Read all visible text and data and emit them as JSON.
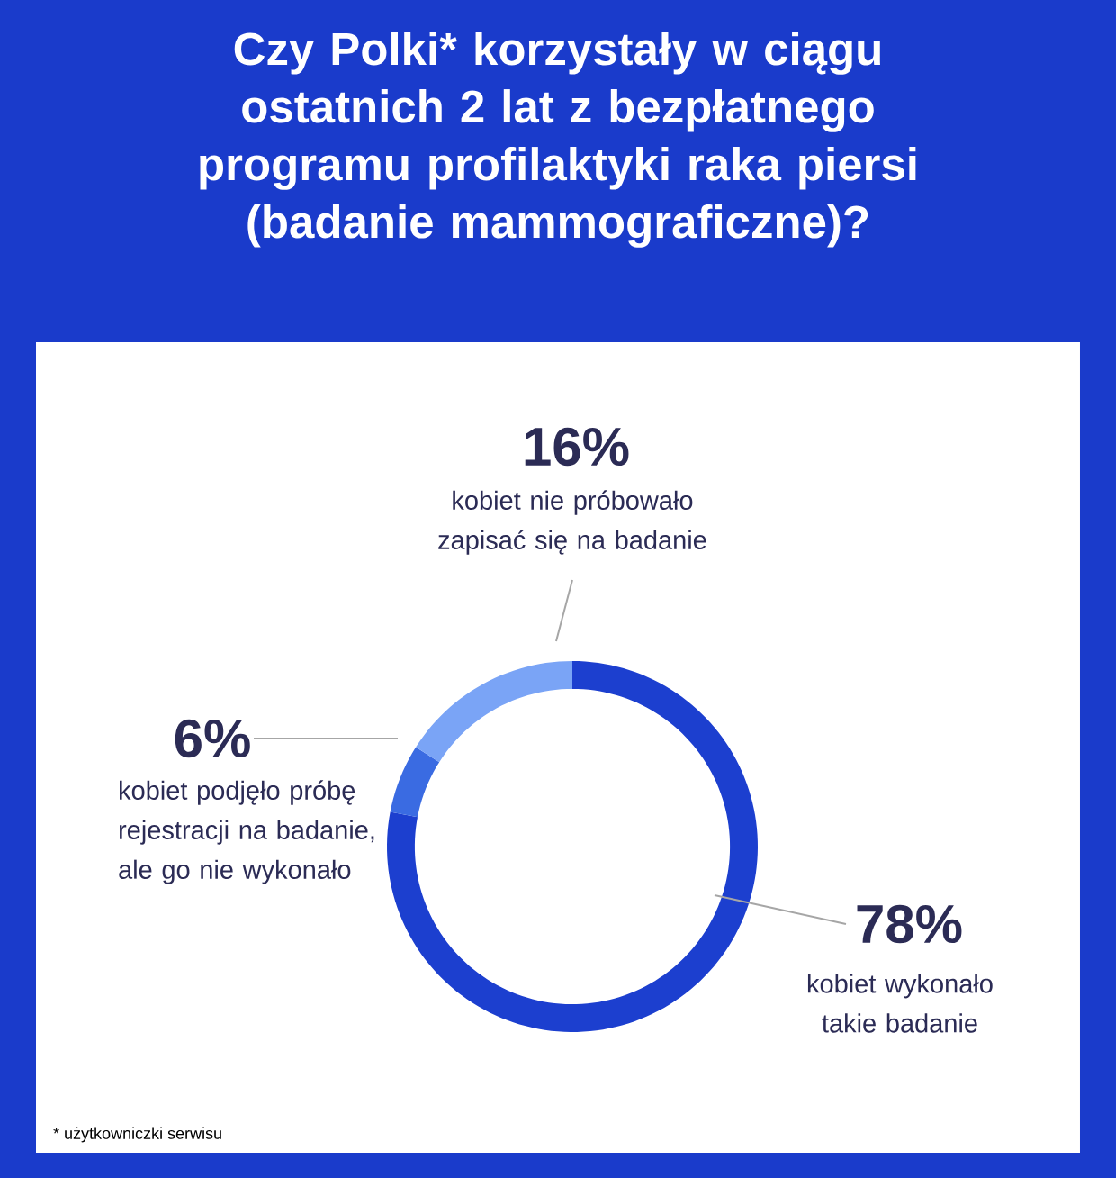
{
  "chart_data": {
    "type": "donut",
    "title": "Czy Polki* korzystały w ciągu ostatnich 2 lat z bezpłatnego programu profilaktyki raka piersi (badanie mammograficzne)?",
    "categories": [
      "kobiet wykonało takie badanie",
      "kobiet podjęło próbę rejestracji na badanie, ale go nie wykonało",
      "kobiet nie próbowało zapisać się na badanie"
    ],
    "values": [
      78,
      6,
      16
    ],
    "value_labels": [
      "78%",
      "6%",
      "16%"
    ],
    "colors": [
      "#1c3fcf",
      "#3a6be2",
      "#7aa4f6"
    ],
    "annotations": [
      "* użytkowniczki serwisu"
    ]
  }
}
